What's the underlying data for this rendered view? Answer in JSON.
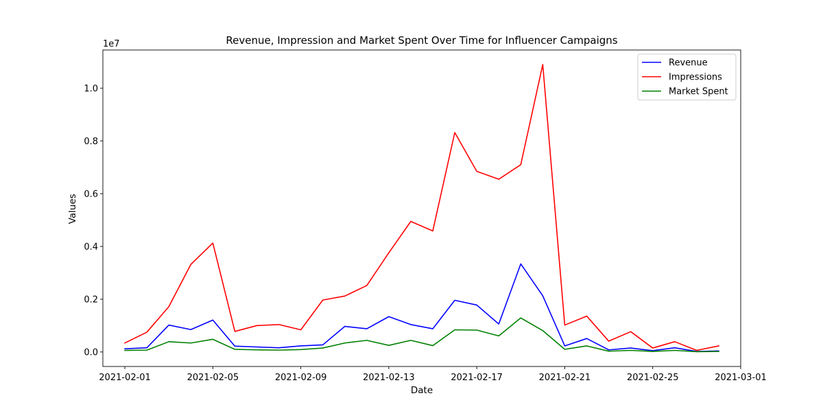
{
  "chart_data": {
    "type": "line",
    "title": "Revenue, Impression and Market Spent Over Time for Influencer Campaigns",
    "xlabel": "Date",
    "ylabel": "Values",
    "y_scale_label": "1e7",
    "ylim": [
      -0.055,
      1.145
    ],
    "y_ticks": [
      0.0,
      0.2,
      0.4,
      0.6,
      0.8,
      1.0
    ],
    "y_tick_labels": [
      "0.0",
      "0.2",
      "0.4",
      "0.6",
      "0.8",
      "1.0"
    ],
    "xlim": [
      "2021-01-31",
      "2021-03-01"
    ],
    "x_ticks": [
      "2021-02-01",
      "2021-02-05",
      "2021-02-09",
      "2021-02-13",
      "2021-02-17",
      "2021-02-21",
      "2021-02-25",
      "2021-03-01"
    ],
    "x_tick_labels": [
      "2021-02-01",
      "2021-02-05",
      "2021-02-09",
      "2021-02-13",
      "2021-02-17",
      "2021-02-21",
      "2021-02-25",
      "2021-03-01"
    ],
    "x": [
      "2021-02-01",
      "2021-02-02",
      "2021-02-03",
      "2021-02-04",
      "2021-02-05",
      "2021-02-06",
      "2021-02-07",
      "2021-02-08",
      "2021-02-09",
      "2021-02-10",
      "2021-02-11",
      "2021-02-12",
      "2021-02-13",
      "2021-02-14",
      "2021-02-15",
      "2021-02-16",
      "2021-02-17",
      "2021-02-18",
      "2021-02-19",
      "2021-02-20",
      "2021-02-21",
      "2021-02-22",
      "2021-02-23",
      "2021-02-24",
      "2021-02-25",
      "2021-02-26",
      "2021-02-27",
      "2021-02-28"
    ],
    "series": [
      {
        "name": "Revenue",
        "color": "#0000ff",
        "values": [
          0.012,
          0.016,
          0.102,
          0.085,
          0.121,
          0.022,
          0.019,
          0.016,
          0.023,
          0.027,
          0.097,
          0.088,
          0.134,
          0.104,
          0.088,
          0.196,
          0.178,
          0.106,
          0.334,
          0.213,
          0.023,
          0.051,
          0.008,
          0.015,
          0.005,
          0.016,
          0.002,
          0.004
        ]
      },
      {
        "name": "Impressions",
        "color": "#ff0000",
        "values": [
          0.034,
          0.075,
          0.172,
          0.332,
          0.413,
          0.078,
          0.1,
          0.104,
          0.084,
          0.197,
          0.212,
          0.252,
          0.376,
          0.495,
          0.459,
          0.832,
          0.685,
          0.655,
          0.71,
          1.09,
          0.102,
          0.136,
          0.041,
          0.077,
          0.015,
          0.039,
          0.006,
          0.023
        ]
      },
      {
        "name": "Market Spent",
        "color": "#008000",
        "values": [
          0.006,
          0.007,
          0.039,
          0.034,
          0.048,
          0.01,
          0.008,
          0.007,
          0.009,
          0.015,
          0.034,
          0.044,
          0.025,
          0.044,
          0.024,
          0.084,
          0.083,
          0.061,
          0.129,
          0.081,
          0.01,
          0.023,
          0.003,
          0.006,
          0.002,
          0.006,
          0.001,
          0.002
        ]
      }
    ],
    "grid": false,
    "legend_position": "top-right"
  }
}
